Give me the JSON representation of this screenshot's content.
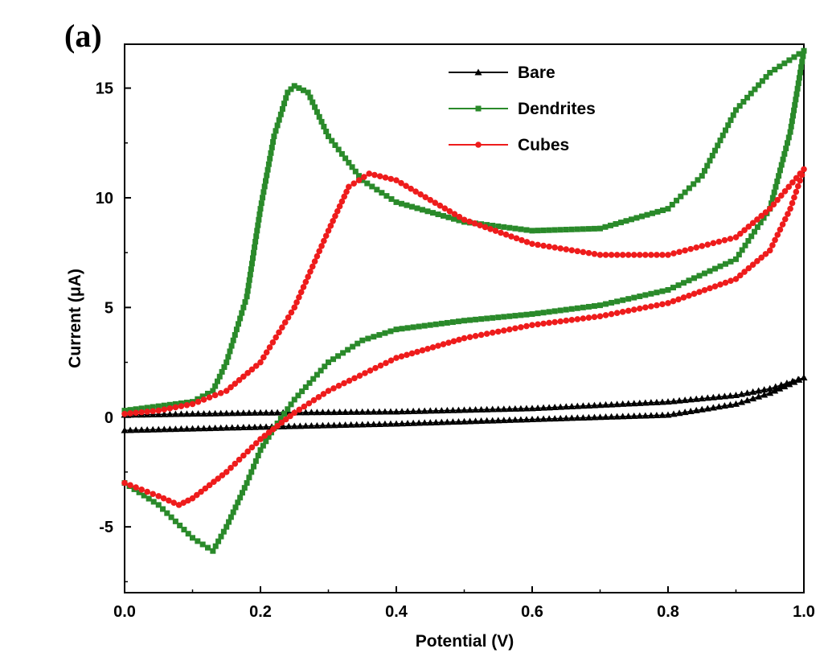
{
  "panel_label": "(a)",
  "chart_data": {
    "type": "line",
    "title": "",
    "xlabel": "Potential (V)",
    "ylabel": "Current (μA)",
    "xlim": [
      0.0,
      1.0
    ],
    "ylim": [
      -8,
      17
    ],
    "x_ticks": [
      0.0,
      0.2,
      0.4,
      0.6,
      0.8,
      1.0
    ],
    "x_tick_labels": [
      "0.0",
      "0.2",
      "0.4",
      "0.6",
      "0.8",
      "1.0"
    ],
    "y_ticks": [
      -5,
      0,
      5,
      10,
      15
    ],
    "y_tick_labels": [
      "-5",
      "0",
      "5",
      "10",
      "15"
    ],
    "legend_position": "top-center",
    "series": [
      {
        "name": "Bare",
        "color": "#000000",
        "marker": "triangle",
        "points": [
          [
            0.0,
            0.1
          ],
          [
            0.2,
            0.2
          ],
          [
            0.4,
            0.25
          ],
          [
            0.6,
            0.4
          ],
          [
            0.8,
            0.7
          ],
          [
            0.9,
            1.0
          ],
          [
            0.95,
            1.3
          ],
          [
            1.0,
            1.8
          ],
          [
            0.95,
            1.1
          ],
          [
            0.9,
            0.6
          ],
          [
            0.8,
            0.1
          ],
          [
            0.6,
            -0.1
          ],
          [
            0.4,
            -0.3
          ],
          [
            0.2,
            -0.45
          ],
          [
            0.0,
            -0.6
          ]
        ]
      },
      {
        "name": "Dendrites",
        "color": "#2a8a2a",
        "marker": "square",
        "points": [
          [
            0.0,
            0.3
          ],
          [
            0.05,
            0.5
          ],
          [
            0.1,
            0.7
          ],
          [
            0.13,
            1.2
          ],
          [
            0.15,
            2.5
          ],
          [
            0.18,
            5.5
          ],
          [
            0.2,
            9.5
          ],
          [
            0.22,
            12.8
          ],
          [
            0.24,
            14.8
          ],
          [
            0.25,
            15.1
          ],
          [
            0.27,
            14.8
          ],
          [
            0.3,
            12.8
          ],
          [
            0.35,
            10.8
          ],
          [
            0.4,
            9.8
          ],
          [
            0.5,
            8.9
          ],
          [
            0.6,
            8.5
          ],
          [
            0.7,
            8.6
          ],
          [
            0.8,
            9.5
          ],
          [
            0.85,
            11.0
          ],
          [
            0.9,
            14.0
          ],
          [
            0.95,
            15.7
          ],
          [
            1.0,
            16.7
          ],
          [
            0.98,
            13.0
          ],
          [
            0.95,
            9.5
          ],
          [
            0.9,
            7.2
          ],
          [
            0.8,
            5.8
          ],
          [
            0.7,
            5.1
          ],
          [
            0.6,
            4.7
          ],
          [
            0.5,
            4.4
          ],
          [
            0.4,
            4.0
          ],
          [
            0.35,
            3.5
          ],
          [
            0.3,
            2.5
          ],
          [
            0.25,
            0.8
          ],
          [
            0.22,
            -0.5
          ],
          [
            0.2,
            -1.5
          ],
          [
            0.18,
            -3.0
          ],
          [
            0.15,
            -5.0
          ],
          [
            0.13,
            -6.1
          ],
          [
            0.1,
            -5.5
          ],
          [
            0.05,
            -4.0
          ],
          [
            0.0,
            -3.0
          ]
        ]
      },
      {
        "name": "Cubes",
        "color": "#ee1c1c",
        "marker": "circle",
        "points": [
          [
            0.0,
            0.15
          ],
          [
            0.05,
            0.3
          ],
          [
            0.1,
            0.6
          ],
          [
            0.15,
            1.2
          ],
          [
            0.2,
            2.5
          ],
          [
            0.25,
            5.0
          ],
          [
            0.3,
            8.5
          ],
          [
            0.33,
            10.5
          ],
          [
            0.36,
            11.1
          ],
          [
            0.4,
            10.8
          ],
          [
            0.45,
            9.9
          ],
          [
            0.5,
            9.0
          ],
          [
            0.6,
            7.9
          ],
          [
            0.7,
            7.4
          ],
          [
            0.8,
            7.4
          ],
          [
            0.9,
            8.2
          ],
          [
            0.95,
            9.5
          ],
          [
            1.0,
            11.3
          ],
          [
            0.98,
            9.5
          ],
          [
            0.95,
            7.6
          ],
          [
            0.9,
            6.3
          ],
          [
            0.8,
            5.2
          ],
          [
            0.7,
            4.6
          ],
          [
            0.6,
            4.2
          ],
          [
            0.5,
            3.6
          ],
          [
            0.4,
            2.7
          ],
          [
            0.3,
            1.2
          ],
          [
            0.25,
            0.2
          ],
          [
            0.2,
            -1.0
          ],
          [
            0.15,
            -2.5
          ],
          [
            0.1,
            -3.7
          ],
          [
            0.08,
            -4.0
          ],
          [
            0.05,
            -3.6
          ],
          [
            0.0,
            -3.0
          ]
        ]
      }
    ]
  }
}
